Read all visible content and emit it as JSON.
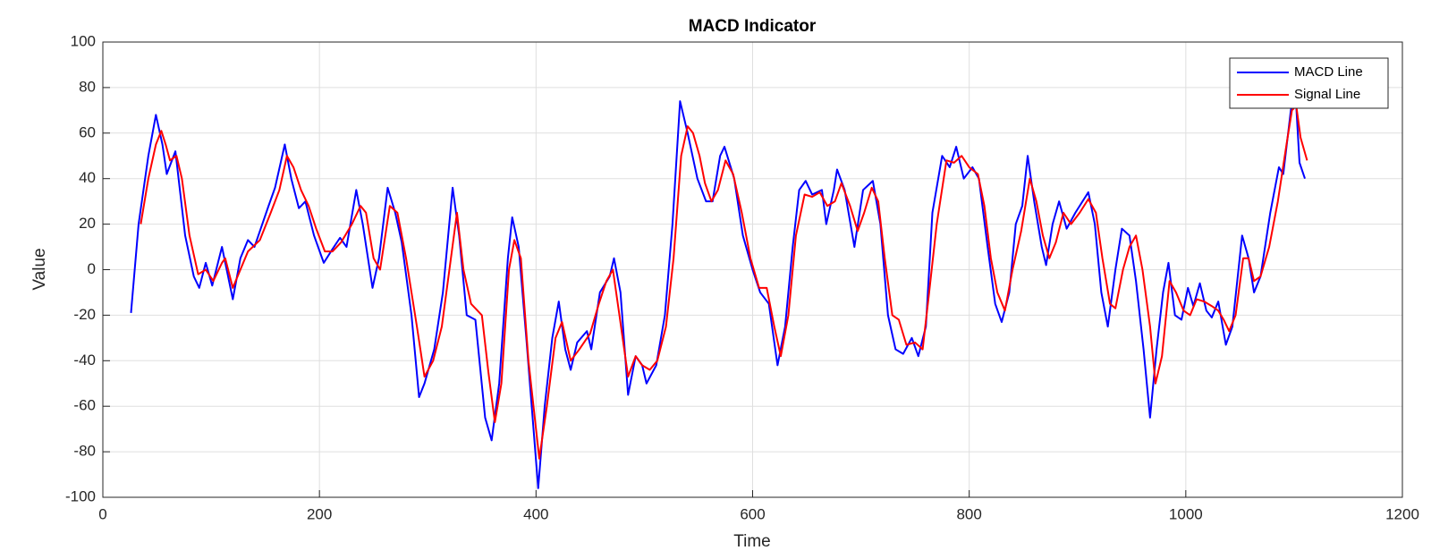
{
  "chart_data": {
    "type": "line",
    "title": "MACD Indicator",
    "x_label": "Time",
    "y_label": "Value",
    "xlim": [
      0,
      1200
    ],
    "xticks": [
      0,
      200,
      400,
      600,
      800,
      1000,
      1200
    ],
    "ylim": [
      -100,
      100
    ],
    "yticks": [
      -100,
      -80,
      -60,
      -40,
      -20,
      0,
      20,
      40,
      60,
      80,
      100
    ],
    "grid": true,
    "legend": "northeast",
    "series": [
      {
        "name": "MACD Line",
        "color": "#0000ff",
        "x": [
          26,
          33,
          42,
          49,
          55,
          59,
          67,
          76,
          84,
          89,
          95,
          101,
          110,
          120,
          127,
          134,
          140,
          153,
          159,
          168,
          174,
          181,
          187,
          195,
          204,
          212,
          219,
          225,
          234,
          240,
          249,
          255,
          263,
          270,
          276,
          285,
          292,
          297,
          306,
          314,
          323,
          329,
          336,
          344,
          353,
          359,
          366,
          374,
          378,
          384,
          391,
          402,
          408,
          415,
          421,
          427,
          432,
          438,
          447,
          451,
          459,
          468,
          472,
          478,
          485,
          492,
          498,
          502,
          511,
          519,
          526,
          533,
          540,
          549,
          557,
          563,
          570,
          574,
          583,
          591,
          600,
          607,
          615,
          623,
          630,
          637,
          643,
          649,
          655,
          664,
          668,
          675,
          678,
          685,
          694,
          702,
          711,
          718,
          725,
          732,
          739,
          747,
          753,
          760,
          766,
          775,
          782,
          788,
          795,
          803,
          809,
          817,
          824,
          830,
          837,
          843,
          849,
          854,
          860,
          867,
          871,
          877,
          883,
          890,
          898,
          910,
          916,
          922,
          928,
          935,
          941,
          948,
          954,
          961,
          967,
          973,
          979,
          984,
          990,
          996,
          1002,
          1007,
          1013,
          1019,
          1024,
          1030,
          1037,
          1043,
          1052,
          1058,
          1063,
          1069,
          1078,
          1086,
          1090,
          1097,
          1101,
          1105,
          1110
        ],
        "values": [
          -19,
          20,
          50,
          68,
          55,
          42,
          52,
          15,
          -3,
          -8,
          3,
          -7,
          10,
          -13,
          5,
          13,
          10,
          28,
          36,
          55,
          40,
          27,
          30,
          15,
          3,
          9,
          14,
          10,
          35,
          20,
          -8,
          5,
          36,
          25,
          12,
          -20,
          -56,
          -50,
          -35,
          -10,
          36,
          15,
          -20,
          -22,
          -65,
          -75,
          -50,
          5,
          23,
          10,
          -30,
          -96,
          -60,
          -30,
          -14,
          -35,
          -44,
          -32,
          -27,
          -35,
          -10,
          -3,
          5,
          -10,
          -55,
          -38,
          -42,
          -50,
          -42,
          -20,
          20,
          74,
          60,
          40,
          30,
          30,
          50,
          54,
          40,
          15,
          0,
          -10,
          -15,
          -42,
          -25,
          10,
          35,
          39,
          33,
          35,
          20,
          35,
          44,
          35,
          10,
          35,
          39,
          20,
          -20,
          -35,
          -37,
          -30,
          -38,
          -25,
          25,
          50,
          45,
          54,
          40,
          45,
          40,
          10,
          -15,
          -23,
          -10,
          20,
          28,
          50,
          30,
          10,
          2,
          20,
          30,
          18,
          25,
          34,
          20,
          -10,
          -25,
          0,
          18,
          15,
          -5,
          -35,
          -65,
          -35,
          -10,
          3,
          -20,
          -22,
          -8,
          -16,
          -6,
          -18,
          -21,
          -14,
          -33,
          -25,
          15,
          5,
          -10,
          -3,
          25,
          45,
          42,
          70,
          80,
          47,
          40
        ]
      },
      {
        "name": "Signal Line",
        "color": "#ff0000",
        "x": [
          35,
          42,
          49,
          54,
          58,
          62,
          68,
          73,
          80,
          88,
          95,
          102,
          110,
          113,
          120,
          127,
          134,
          145,
          155,
          163,
          170,
          176,
          183,
          190,
          197,
          205,
          212,
          220,
          230,
          238,
          243,
          250,
          256,
          265,
          272,
          280,
          290,
          297,
          305,
          313,
          320,
          327,
          333,
          340,
          350,
          356,
          362,
          368,
          375,
          380,
          386,
          393,
          403,
          410,
          418,
          424,
          432,
          440,
          450,
          458,
          465,
          471,
          477,
          485,
          492,
          498,
          505,
          512,
          520,
          527,
          534,
          540,
          545,
          551,
          556,
          562,
          568,
          575,
          582,
          590,
          598,
          606,
          613,
          620,
          626,
          633,
          640,
          648,
          655,
          662,
          669,
          676,
          682,
          690,
          697,
          703,
          710,
          716,
          722,
          729,
          735,
          742,
          750,
          757,
          763,
          770,
          779,
          786,
          793,
          800,
          808,
          814,
          820,
          826,
          833,
          840,
          848,
          856,
          862,
          868,
          874,
          880,
          887,
          894,
          902,
          910,
          917,
          923,
          930,
          935,
          942,
          948,
          954,
          960,
          967,
          972,
          978,
          985,
          991,
          998,
          1004,
          1010,
          1017,
          1024,
          1030,
          1035,
          1040,
          1046,
          1053,
          1058,
          1063,
          1069,
          1077,
          1085,
          1093,
          1098,
          1102,
          1106,
          1112
        ],
        "values": [
          20,
          40,
          55,
          61,
          55,
          48,
          50,
          40,
          15,
          -2,
          0,
          -5,
          3,
          5,
          -8,
          0,
          8,
          13,
          25,
          35,
          50,
          45,
          35,
          28,
          18,
          8,
          8,
          12,
          20,
          28,
          25,
          5,
          0,
          28,
          25,
          5,
          -25,
          -47,
          -40,
          -25,
          0,
          25,
          0,
          -15,
          -20,
          -45,
          -67,
          -50,
          0,
          13,
          5,
          -40,
          -83,
          -60,
          -30,
          -23,
          -40,
          -35,
          -28,
          -15,
          -5,
          0,
          -20,
          -47,
          -38,
          -42,
          -44,
          -40,
          -25,
          5,
          50,
          63,
          60,
          50,
          38,
          30,
          35,
          48,
          42,
          25,
          5,
          -8,
          -8,
          -25,
          -38,
          -20,
          15,
          33,
          32,
          34,
          28,
          30,
          38,
          28,
          17,
          25,
          36,
          30,
          5,
          -20,
          -22,
          -33,
          -32,
          -35,
          -10,
          20,
          48,
          47,
          50,
          45,
          42,
          28,
          5,
          -10,
          -18,
          0,
          17,
          40,
          30,
          15,
          5,
          12,
          25,
          20,
          25,
          31,
          25,
          5,
          -15,
          -17,
          0,
          10,
          15,
          0,
          -25,
          -50,
          -38,
          -5,
          -10,
          -18,
          -20,
          -13,
          -14,
          -16,
          -18,
          -22,
          -27,
          -20,
          5,
          5,
          -5,
          -3,
          10,
          30,
          55,
          70,
          72,
          58,
          48
        ]
      }
    ]
  }
}
